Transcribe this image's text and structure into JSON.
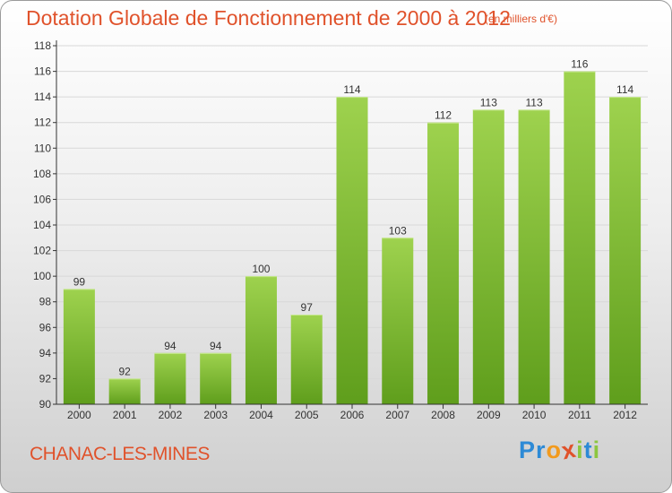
{
  "header": {
    "title": "Dotation Globale de Fonctionnement de 2000 à 2012",
    "subtitle": "(en milliers d'€)"
  },
  "footer": {
    "commune": "CHANAC-LES-MINES",
    "logo_text": "Proxiti",
    "logo_letters": [
      {
        "ch": "P",
        "color": "#2d8ad6"
      },
      {
        "ch": "r",
        "color": "#2d8ad6"
      },
      {
        "ch": "o",
        "color": "#f29a1d"
      },
      {
        "ch": "x",
        "color": "#e0522b"
      },
      {
        "ch": "i",
        "color": "#8cc63f"
      },
      {
        "ch": "t",
        "color": "#2d8ad6"
      },
      {
        "ch": "i",
        "color": "#8cc63f"
      }
    ]
  },
  "colors": {
    "accent": "#e0522b",
    "bar_top": "#9ed24e",
    "bar_bottom": "#5f9e1c",
    "axis": "#333333"
  },
  "chart_data": {
    "type": "bar",
    "categories": [
      "2000",
      "2001",
      "2002",
      "2003",
      "2004",
      "2005",
      "2006",
      "2007",
      "2008",
      "2009",
      "2010",
      "2011",
      "2012"
    ],
    "values": [
      99,
      92,
      94,
      94,
      100,
      97,
      114,
      103,
      112,
      113,
      113,
      116,
      114
    ],
    "data_labels": [
      "99",
      "92",
      "94",
      "94",
      "100",
      "97",
      "114",
      "103",
      "112",
      "113",
      "113",
      "116",
      "114"
    ],
    "ylim": [
      90,
      118
    ],
    "yticks": [
      "90",
      "92",
      "94",
      "96",
      "98",
      "100",
      "102",
      "104",
      "106",
      "108",
      "110",
      "112",
      "114",
      "116",
      "118"
    ],
    "grid": true,
    "legend": "none"
  }
}
